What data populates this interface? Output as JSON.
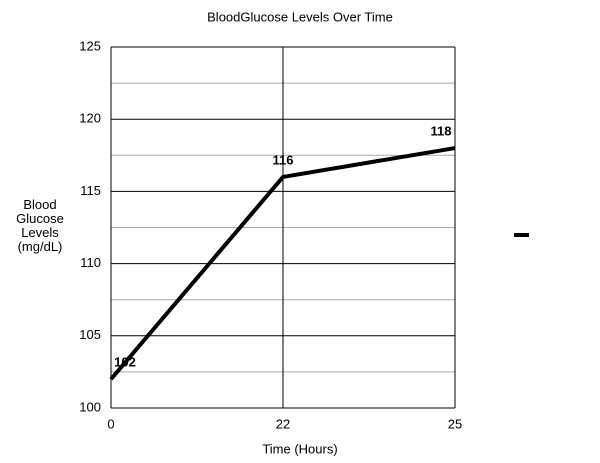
{
  "chart_data": {
    "type": "line",
    "title": "BloodGlucose Levels Over Time",
    "x_label": "Time (Hours)",
    "y_label": "Blood Glucose Levels (mg/dL)",
    "categories": [
      0,
      22,
      25
    ],
    "series": [
      {
        "color": "#000000",
        "values": [
          102,
          116,
          118
        ]
      }
    ],
    "ylim": [
      100,
      125
    ],
    "yticks": [
      100,
      105,
      110,
      115,
      120,
      125
    ],
    "minor_yticks": [
      102.5,
      107.5,
      112.5,
      117.5,
      122.5
    ],
    "grid": true,
    "data_labels": true
  }
}
